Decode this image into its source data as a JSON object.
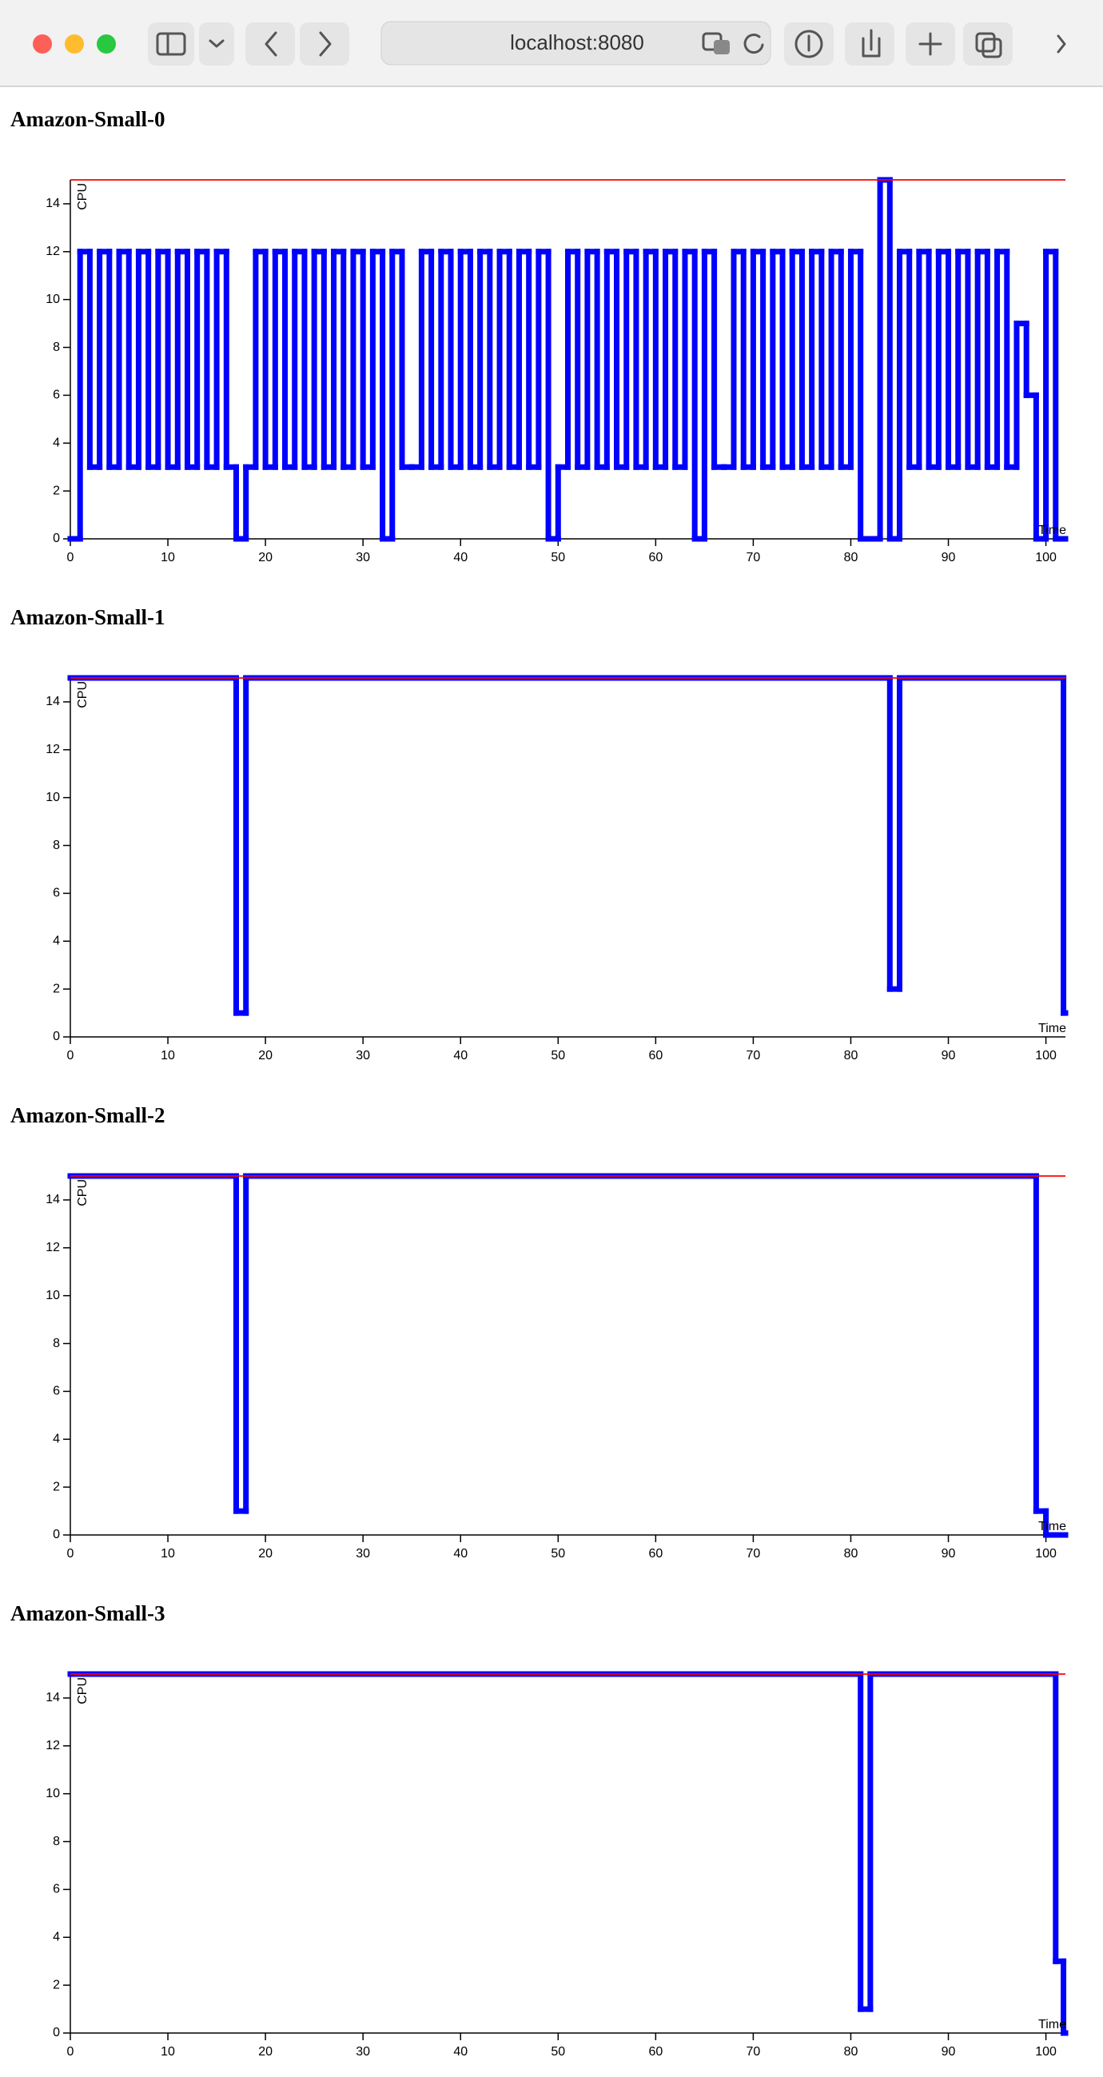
{
  "browser": {
    "url": "localhost:8080"
  },
  "chart_data": [
    {
      "type": "line",
      "step": true,
      "title": "Amazon-Small-0",
      "x_label": "Time",
      "y_label": "CPU",
      "x": [
        0,
        1,
        2,
        3,
        4,
        5,
        6,
        7,
        8,
        9,
        10,
        11,
        12,
        13,
        14,
        15,
        16,
        17,
        18,
        19,
        20,
        21,
        22,
        23,
        24,
        25,
        26,
        27,
        28,
        29,
        30,
        31,
        32,
        33,
        34,
        35,
        36,
        37,
        38,
        39,
        40,
        41,
        42,
        43,
        44,
        45,
        46,
        47,
        48,
        49,
        50,
        51,
        52,
        53,
        54,
        55,
        56,
        57,
        58,
        59,
        60,
        61,
        62,
        63,
        64,
        65,
        66,
        67,
        68,
        69,
        70,
        71,
        72,
        73,
        74,
        75,
        76,
        77,
        78,
        79,
        80,
        81,
        82,
        83,
        84,
        85,
        86,
        87,
        88,
        89,
        90,
        91,
        92,
        93,
        94,
        95,
        96,
        97,
        98,
        99,
        100,
        101
      ],
      "values": [
        0,
        12,
        3,
        12,
        3,
        12,
        3,
        12,
        3,
        12,
        3,
        12,
        3,
        12,
        3,
        12,
        3,
        0,
        3,
        12,
        3,
        12,
        3,
        12,
        3,
        12,
        3,
        12,
        3,
        12,
        3,
        12,
        0,
        12,
        3,
        3,
        12,
        3,
        12,
        3,
        12,
        3,
        12,
        3,
        12,
        3,
        12,
        3,
        12,
        0,
        3,
        12,
        3,
        12,
        3,
        12,
        3,
        12,
        3,
        12,
        3,
        12,
        3,
        12,
        0,
        12,
        3,
        3,
        12,
        3,
        12,
        3,
        12,
        3,
        12,
        3,
        12,
        3,
        12,
        3,
        12,
        0,
        0,
        15,
        0,
        12,
        3,
        12,
        3,
        12,
        3,
        12,
        3,
        12,
        3,
        12,
        3,
        9,
        6,
        0,
        12,
        0
      ],
      "color": "#0000ff",
      "xlim": [
        0,
        102
      ],
      "ylim": [
        0,
        15
      ],
      "xticks": [
        0,
        10,
        20,
        30,
        40,
        50,
        60,
        70,
        80,
        90,
        100
      ],
      "yticks": [
        0,
        2,
        4,
        6,
        8,
        10,
        12,
        14
      ],
      "threshold": 15,
      "threshold_color": "#ff0000"
    },
    {
      "type": "line",
      "step": true,
      "title": "Amazon-Small-1",
      "x_label": "Time",
      "y_label": "CPU",
      "x": [
        0,
        17,
        18,
        84,
        85,
        101.8
      ],
      "values": [
        15,
        1,
        15,
        2,
        15,
        1
      ],
      "color": "#0000ff",
      "xlim": [
        0,
        102
      ],
      "ylim": [
        0,
        15
      ],
      "xticks": [
        0,
        10,
        20,
        30,
        40,
        50,
        60,
        70,
        80,
        90,
        100
      ],
      "yticks": [
        0,
        2,
        4,
        6,
        8,
        10,
        12,
        14
      ],
      "threshold": 15,
      "threshold_color": "#ff0000"
    },
    {
      "type": "line",
      "step": true,
      "title": "Amazon-Small-2",
      "x_label": "Time",
      "y_label": "CPU",
      "x": [
        0,
        17,
        18,
        99,
        100
      ],
      "values": [
        15,
        1,
        15,
        1,
        0
      ],
      "color": "#0000ff",
      "xlim": [
        0,
        102
      ],
      "ylim": [
        0,
        15
      ],
      "xticks": [
        0,
        10,
        20,
        30,
        40,
        50,
        60,
        70,
        80,
        90,
        100
      ],
      "yticks": [
        0,
        2,
        4,
        6,
        8,
        10,
        12,
        14
      ],
      "threshold": 15,
      "threshold_color": "#ff0000"
    },
    {
      "type": "line",
      "step": true,
      "title": "Amazon-Small-3",
      "x_label": "Time",
      "y_label": "CPU",
      "x": [
        0,
        81,
        82,
        101,
        101.8
      ],
      "values": [
        15,
        1,
        15,
        3,
        0
      ],
      "color": "#0000ff",
      "xlim": [
        0,
        102
      ],
      "ylim": [
        0,
        15
      ],
      "xticks": [
        0,
        10,
        20,
        30,
        40,
        50,
        60,
        70,
        80,
        90,
        100
      ],
      "yticks": [
        0,
        2,
        4,
        6,
        8,
        10,
        12,
        14
      ],
      "threshold": 15,
      "threshold_color": "#ff0000"
    }
  ]
}
